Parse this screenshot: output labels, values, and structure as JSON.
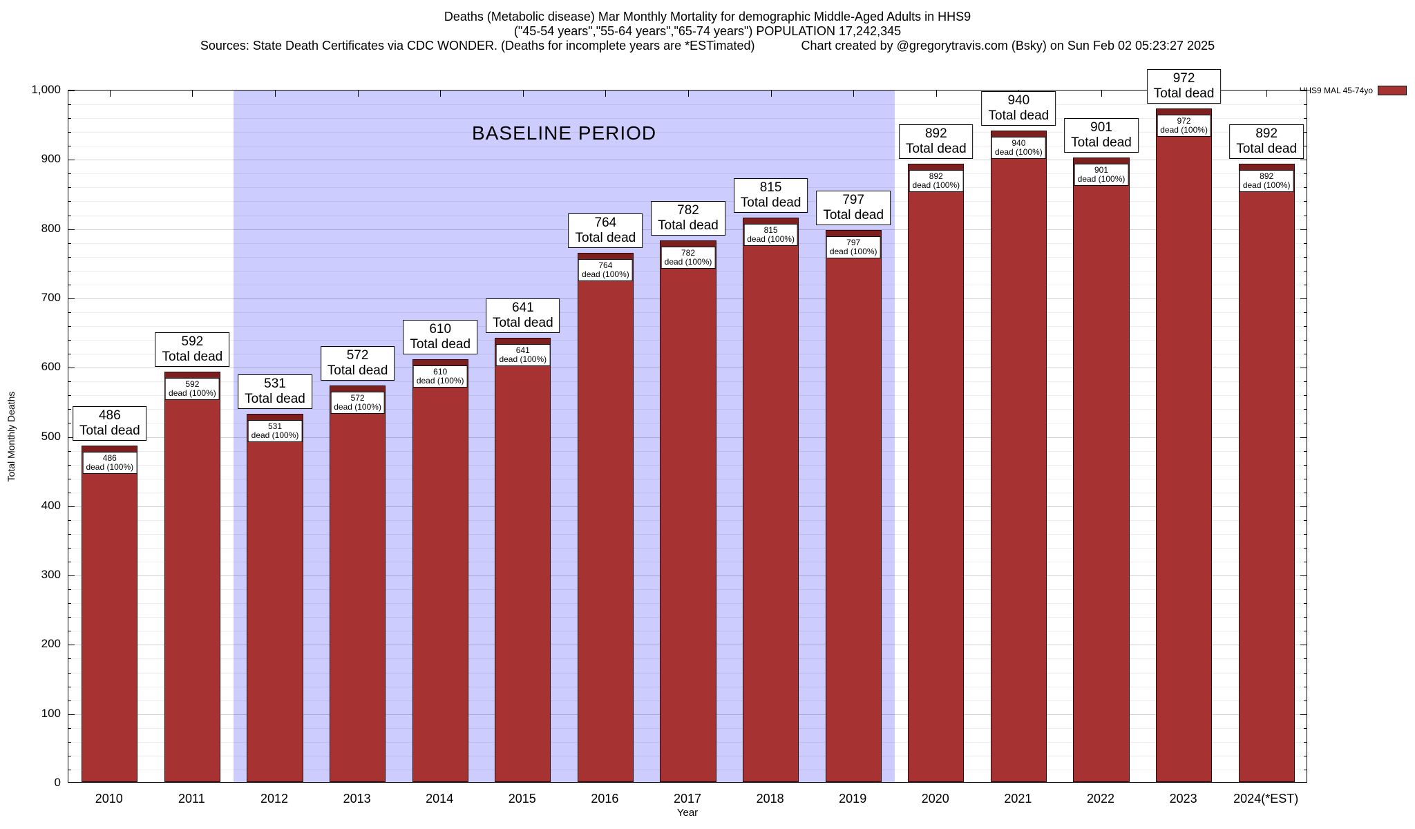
{
  "title": {
    "line1": "Deaths (Metabolic disease) Mar Monthly Mortality for demographic Middle-Aged Adults in HHS9",
    "line2": "(\"45-54 years\",\"55-64 years\",\"65-74 years\") POPULATION 17,242,345",
    "line3_left": "Sources: State Death Certificates via CDC WONDER. (Deaths for incomplete years are *ESTimated)",
    "line3_right": "Chart created by @gregorytravis.com (Bsky) on Sun Feb 02 05:23:27 2025"
  },
  "chart_data": {
    "type": "bar",
    "title": "Deaths (Metabolic disease) Mar Monthly Mortality for demographic Middle-Aged Adults in HHS9",
    "categories": [
      "2010",
      "2011",
      "2012",
      "2013",
      "2014",
      "2015",
      "2016",
      "2017",
      "2018",
      "2019",
      "2020",
      "2021",
      "2022",
      "2023",
      "2024(*EST)"
    ],
    "values": [
      486,
      592,
      531,
      572,
      610,
      641,
      764,
      782,
      815,
      797,
      892,
      940,
      901,
      972,
      892
    ],
    "outer_label_suffix": "Total dead",
    "inner_label_suffix": "dead (100%)",
    "xlabel": "Year",
    "ylabel": "Total Monthly Deaths",
    "ylim": [
      0,
      1000
    ],
    "ytick_interval": 100,
    "yminor_interval": 20,
    "ytick_top_label": "1,000",
    "grid": true,
    "bar_color": "#a63232",
    "bar_top_color": "#7d1f1f",
    "legend": {
      "label": "HHS9 MAL 45-74yo",
      "position": "top-right"
    },
    "baseline_region": {
      "label": "BASELINE PERIOD",
      "from_category": "2012",
      "to_category": "2019",
      "color": "#ccccff"
    }
  }
}
